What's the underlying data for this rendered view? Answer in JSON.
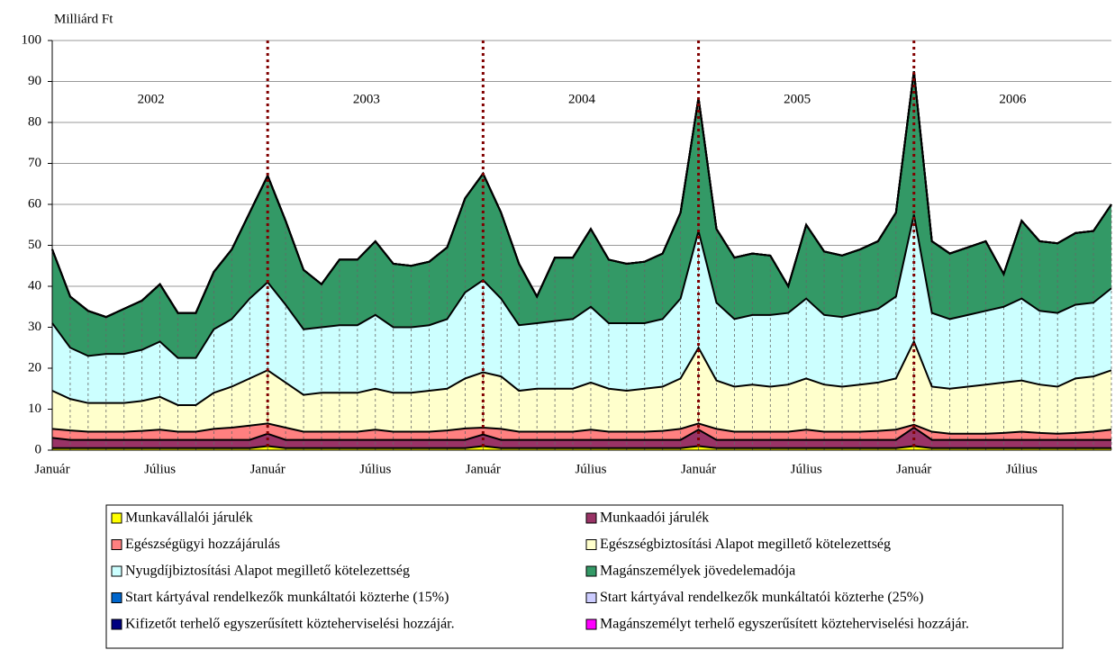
{
  "chart_data": {
    "type": "area",
    "stacked": true,
    "y_label": "Milliárd Ft",
    "annotations": [
      "2002",
      "2003",
      "2004",
      "2005",
      "2006"
    ],
    "categories": [
      "Január",
      null,
      null,
      null,
      null,
      null,
      "Július",
      null,
      null,
      null,
      null,
      null,
      "Január",
      null,
      null,
      null,
      null,
      null,
      "Július",
      null,
      null,
      null,
      null,
      null,
      "Január",
      null,
      null,
      null,
      null,
      null,
      "Július",
      null,
      null,
      null,
      null,
      null,
      "Január",
      null,
      null,
      null,
      null,
      null,
      "Július",
      null,
      null,
      null,
      null,
      null,
      "Január",
      null,
      null,
      null,
      null,
      null,
      "Július",
      null,
      null,
      null,
      null,
      null
    ],
    "ylim": [
      0,
      100
    ],
    "yticks": [
      0,
      10,
      20,
      30,
      40,
      50,
      60,
      70,
      80,
      90,
      100
    ],
    "grid": true,
    "legend": "bottom",
    "series": [
      {
        "name": "Munkavállalói járulék",
        "color": "#ffff00",
        "values": [
          0.5,
          0.5,
          0.5,
          0.5,
          0.5,
          0.5,
          0.5,
          0.5,
          0.5,
          0.5,
          0.5,
          0.5,
          1,
          0.5,
          0.5,
          0.5,
          0.5,
          0.5,
          0.5,
          0.5,
          0.5,
          0.5,
          0.5,
          0.5,
          1,
          0.5,
          0.5,
          0.5,
          0.5,
          0.5,
          0.5,
          0.5,
          0.5,
          0.5,
          0.5,
          0.5,
          1,
          0.5,
          0.5,
          0.5,
          0.5,
          0.5,
          0.5,
          0.5,
          0.5,
          0.5,
          0.5,
          0.5,
          1,
          0.5,
          0.5,
          0.5,
          0.5,
          0.5,
          0.5,
          0.5,
          0.5,
          0.5,
          0.5,
          0.5
        ]
      },
      {
        "name": "Munkaadói járulék",
        "color": "#993366",
        "values": [
          2.5,
          2,
          2,
          2,
          2,
          2,
          2,
          2,
          2,
          2,
          2,
          2,
          3,
          2,
          2,
          2,
          2,
          2,
          2,
          2,
          2,
          2,
          2,
          2,
          2.8,
          2,
          2,
          2,
          2,
          2,
          2,
          2,
          2,
          2,
          2,
          2,
          4,
          2,
          2,
          2,
          2,
          2,
          2,
          2,
          2,
          2,
          2,
          2,
          4.5,
          2,
          2,
          2,
          2,
          2,
          2,
          2,
          2,
          2,
          2,
          2
        ]
      },
      {
        "name": "Egészségügyi hozzájárulás",
        "color": "#ff8080",
        "values": [
          2.2,
          2.3,
          2,
          2,
          2,
          2.2,
          2.5,
          2,
          2,
          2.7,
          3,
          3.5,
          2.5,
          3,
          2,
          2,
          2,
          2,
          2.5,
          2,
          2,
          2,
          2.3,
          2.8,
          1.7,
          2.7,
          2,
          2,
          2,
          2,
          2.5,
          2,
          2,
          2,
          2.2,
          2.7,
          1.5,
          2.7,
          2,
          2,
          2,
          2,
          2.5,
          2,
          2,
          2,
          2.2,
          2.5,
          0.7,
          2,
          1.5,
          1.5,
          1.5,
          1.7,
          2,
          1.7,
          1.5,
          1.7,
          2,
          2.5
        ]
      },
      {
        "name": "Egészségbiztosítási Alapot megillető kötelezettség",
        "color": "#ffffcc",
        "values": [
          9.3,
          7.7,
          7,
          7,
          7,
          7.3,
          8,
          6.5,
          6.5,
          8.8,
          10,
          11.5,
          13,
          11,
          9,
          9.5,
          9.5,
          9.5,
          10,
          9.5,
          9.5,
          10,
          10.2,
          12.2,
          13.5,
          12.8,
          10,
          10.5,
          10.5,
          10.5,
          11.5,
          10.5,
          10,
          10.5,
          10.8,
          12.3,
          18.5,
          11.8,
          11,
          11.5,
          11,
          11.5,
          12.5,
          11.5,
          11,
          11.5,
          11.8,
          12.5,
          20.3,
          11,
          11,
          11.5,
          12,
          12.3,
          12.5,
          11.8,
          11.5,
          13.3,
          13.5,
          14.5
        ]
      },
      {
        "name": "Nyugdíjbiztosítási Alapot megillető kötelezettség",
        "color": "#ccffff",
        "values": [
          16.5,
          12.5,
          11.5,
          12,
          12,
          12.5,
          13.5,
          11.5,
          11.5,
          15.5,
          16.5,
          19.5,
          21.5,
          19,
          16,
          16,
          16.5,
          16.5,
          18,
          16,
          16,
          16,
          17,
          21,
          22.5,
          19,
          16,
          16,
          16.5,
          17,
          18.5,
          16,
          16.5,
          16,
          16.5,
          19.5,
          28.5,
          19,
          16.5,
          17,
          17.5,
          17.5,
          19.5,
          17,
          17,
          17.5,
          18,
          20,
          31,
          18,
          17,
          17.5,
          18,
          18.5,
          20,
          18,
          18,
          18,
          18,
          20
        ]
      },
      {
        "name": "Magánszemélyek jövedelemadója",
        "color": "#339966",
        "values": [
          18,
          12.5,
          11,
          9,
          11,
          12,
          14,
          11,
          11,
          14,
          17,
          21,
          26,
          20.5,
          14.5,
          10.5,
          16,
          16,
          18,
          15.5,
          15,
          15.5,
          17.5,
          23,
          26,
          21,
          15,
          6.5,
          15.5,
          15,
          19,
          15.5,
          14.5,
          15,
          16,
          21,
          32.5,
          18,
          15,
          15,
          14.5,
          6.5,
          18,
          15.5,
          15,
          15.5,
          16.5,
          20.5,
          35,
          17.5,
          16,
          16.5,
          17,
          8,
          19,
          17,
          17,
          17.5,
          17.5,
          20.5
        ]
      },
      {
        "name": "Start kártyával rendelkezők munkáltatói közterhe (15%)",
        "color": "#0066cc",
        "values": [
          0,
          0,
          0,
          0,
          0,
          0,
          0,
          0,
          0,
          0,
          0,
          0,
          0,
          0,
          0,
          0,
          0,
          0,
          0,
          0,
          0,
          0,
          0,
          0,
          0,
          0,
          0,
          0,
          0,
          0,
          0,
          0,
          0,
          0,
          0,
          0,
          0,
          0,
          0,
          0,
          0,
          0,
          0,
          0,
          0,
          0,
          0,
          0,
          0,
          0,
          0,
          0,
          0,
          0,
          0,
          0,
          0,
          0,
          0,
          0
        ]
      },
      {
        "name": "Start kártyával rendelkezők munkáltatói közterhe (25%)",
        "color": "#ccccff",
        "values": [
          0,
          0,
          0,
          0,
          0,
          0,
          0,
          0,
          0,
          0,
          0,
          0,
          0,
          0,
          0,
          0,
          0,
          0,
          0,
          0,
          0,
          0,
          0,
          0,
          0,
          0,
          0,
          0,
          0,
          0,
          0,
          0,
          0,
          0,
          0,
          0,
          0,
          0,
          0,
          0,
          0,
          0,
          0,
          0,
          0,
          0,
          0,
          0,
          0,
          0,
          0,
          0,
          0,
          0,
          0,
          0,
          0,
          0,
          0,
          0
        ]
      },
      {
        "name": "Kifizetőt terhelő egyszerűsített közteherviselési hozzájár.",
        "color": "#000080",
        "values": [
          0,
          0,
          0,
          0,
          0,
          0,
          0,
          0,
          0,
          0,
          0,
          0,
          0,
          0,
          0,
          0,
          0,
          0,
          0,
          0,
          0,
          0,
          0,
          0,
          0,
          0,
          0,
          0,
          0,
          0,
          0,
          0,
          0,
          0,
          0,
          0,
          0,
          0,
          0,
          0,
          0,
          0,
          0,
          0,
          0,
          0,
          0,
          0,
          0,
          0,
          0,
          0,
          0,
          0,
          0,
          0,
          0,
          0,
          0,
          0
        ]
      },
      {
        "name": "Magánszemélyt terhelő egyszerűsített közteherviselési hozzájár.",
        "color": "#ff00ff",
        "values": [
          0,
          0,
          0,
          0,
          0,
          0,
          0,
          0,
          0,
          0,
          0,
          0,
          0,
          0,
          0,
          0,
          0,
          0,
          0,
          0,
          0,
          0,
          0,
          0,
          0,
          0,
          0,
          0,
          0,
          0,
          0,
          0,
          0,
          0,
          0,
          0,
          0,
          0,
          0,
          0,
          0,
          0,
          0,
          0,
          0,
          0,
          0,
          0,
          0,
          0,
          0,
          0,
          0,
          0,
          0,
          0,
          0,
          0,
          0,
          0
        ]
      }
    ]
  }
}
